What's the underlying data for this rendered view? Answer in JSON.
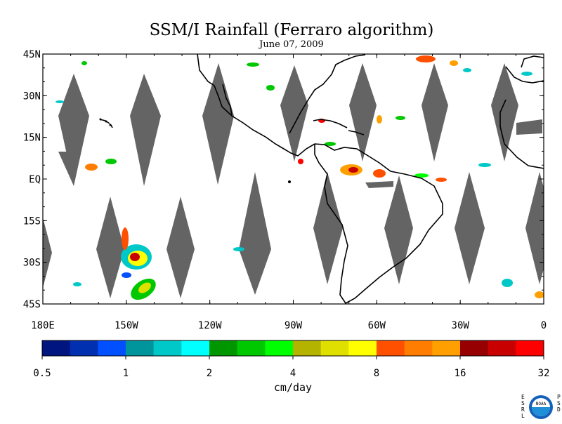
{
  "title": "SSM/I Rainfall (Ferraro algorithm)",
  "date": "June 07, 2009",
  "map": {
    "lat_labels": [
      "45N",
      "30N",
      "15N",
      "EQ",
      "15S",
      "30S",
      "45S"
    ],
    "lon_labels": [
      "180E",
      "150W",
      "120W",
      "90W",
      "60W",
      "30W",
      "0"
    ],
    "lat_values": [
      45,
      30,
      15,
      0,
      -15,
      -30,
      -45
    ],
    "lon_values": [
      -180,
      -150,
      -120,
      -90,
      -60,
      -30,
      0
    ],
    "land_color": "#000000",
    "no_data_color": "#646464"
  },
  "colorbar": {
    "unit_label": "cm/day",
    "tick_labels": [
      "0.5",
      "1",
      "2",
      "4",
      "8",
      "16",
      "32"
    ],
    "colors": [
      "#001580",
      "#0030b0",
      "#0050ff",
      "#00949c",
      "#00c8c8",
      "#00ffff",
      "#009600",
      "#00c800",
      "#00ff00",
      "#b4b400",
      "#e0e000",
      "#ffff00",
      "#ff5000",
      "#ff7d00",
      "#ffa000",
      "#960000",
      "#c80000",
      "#ff0000"
    ]
  },
  "logo": {
    "left_letters": [
      "E",
      "S",
      "R",
      "L"
    ],
    "right_letters": [
      "P",
      "S",
      "D"
    ],
    "seal_text": "NOAA"
  }
}
